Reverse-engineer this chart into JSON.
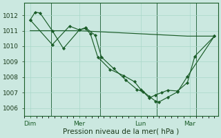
{
  "background_color": "#cbe8e0",
  "grid_color": "#a8d8c8",
  "line_color": "#1a5c28",
  "marker_color": "#1a5c28",
  "xtick_labels": [
    "Dim",
    "Mer",
    "Lun",
    "Mar"
  ],
  "xtick_positions": [
    0.5,
    4.5,
    9.5,
    13.5
  ],
  "ylabel": "Pression niveau de la mer( hPa )",
  "ylim": [
    1005.5,
    1012.8
  ],
  "yticks": [
    1006,
    1007,
    1008,
    1009,
    1010,
    1011,
    1012
  ],
  "series1_x": [
    0.5,
    0.9,
    1.3,
    2.3,
    3.2,
    4.5,
    5.0,
    5.4,
    6.0,
    7.0,
    8.1,
    9.0,
    9.5,
    10.2,
    10.7,
    11.0,
    11.7,
    12.5,
    13.3,
    15.5
  ],
  "series1_y": [
    1011.7,
    1012.2,
    1012.15,
    1011.0,
    1009.85,
    1011.05,
    1011.15,
    1010.8,
    1009.3,
    1008.5,
    1008.1,
    1007.7,
    1007.2,
    1006.75,
    1006.45,
    1006.4,
    1006.7,
    1007.05,
    1008.05,
    1010.65
  ],
  "series2_x": [
    0.5,
    2.3,
    3.7,
    4.5,
    5.0,
    5.8,
    6.3,
    7.3,
    8.3,
    9.2,
    9.7,
    10.2,
    10.7,
    11.2,
    11.7,
    12.5,
    13.3,
    13.9,
    15.5
  ],
  "series2_y": [
    1011.7,
    1010.1,
    1011.3,
    1011.05,
    1011.2,
    1010.7,
    1009.3,
    1008.55,
    1007.8,
    1007.2,
    1007.05,
    1006.65,
    1006.85,
    1007.0,
    1007.15,
    1007.1,
    1007.65,
    1009.35,
    1010.65
  ],
  "series3_x": [
    0.5,
    4.5,
    13.3,
    15.5
  ],
  "series3_y": [
    1011.0,
    1011.0,
    1010.65,
    1010.65
  ],
  "vline_x": [
    2.2,
    6.2,
    10.8,
    14.0
  ],
  "xlim": [
    0.0,
    15.8
  ],
  "xlabel_fontsize": 7.5,
  "tick_fontsize": 6.5,
  "fig_width": 3.2,
  "fig_height": 2.0,
  "dpi": 100
}
